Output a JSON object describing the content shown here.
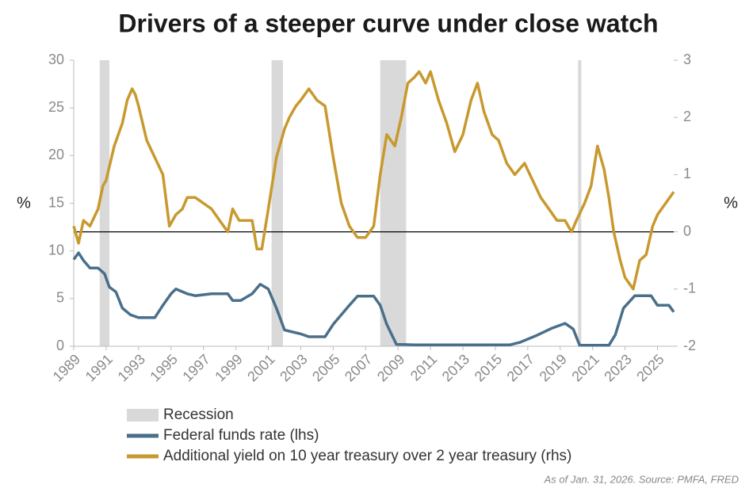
{
  "chart_data": {
    "type": "line",
    "title": "Drivers of a steeper curve under close watch",
    "ylabel": "%",
    "y2label": "%",
    "xlim": [
      1989,
      2026
    ],
    "xticks": [
      1989,
      1991,
      1993,
      1995,
      1997,
      1999,
      2001,
      2003,
      2005,
      2007,
      2009,
      2011,
      2013,
      2015,
      2017,
      2019,
      2021,
      2023,
      2025
    ],
    "ylim": [
      0,
      30
    ],
    "yticks": [
      0,
      5,
      10,
      15,
      20,
      25,
      30
    ],
    "y2lim": [
      -2,
      3
    ],
    "y2ticks": [
      -2,
      -1,
      0,
      1,
      2,
      3
    ],
    "bands": {
      "name": "Recession",
      "color": "#d9d9d9",
      "ranges": [
        [
          1990.6,
          1991.2
        ],
        [
          2001.2,
          2001.9
        ],
        [
          2007.9,
          2009.5
        ],
        [
          2020.1,
          2020.3
        ]
      ]
    },
    "series": [
      {
        "name": "Federal funds rate (lhs)",
        "color": "#4a6f8a",
        "x": [
          1989.0,
          1989.3,
          1989.6,
          1990.0,
          1990.5,
          1990.9,
          1991.2,
          1991.6,
          1992.0,
          1992.5,
          1993.0,
          1994.0,
          1994.5,
          1995.0,
          1995.3,
          1996.0,
          1996.5,
          1997.5,
          1998.5,
          1998.8,
          1999.3,
          2000.0,
          2000.5,
          2001.0,
          2001.5,
          2002.0,
          2003.0,
          2003.5,
          2004.5,
          2005.0,
          2006.0,
          2006.5,
          2007.5,
          2007.9,
          2008.3,
          2008.9,
          2010.0,
          2015.9,
          2016.5,
          2017.5,
          2018.5,
          2019.3,
          2019.8,
          2020.2,
          2022.0,
          2022.4,
          2022.9,
          2023.6,
          2024.6,
          2025.0,
          2025.7,
          2026.0
        ],
        "values": [
          9.1,
          9.8,
          9.0,
          8.2,
          8.2,
          7.6,
          6.2,
          5.7,
          4.0,
          3.3,
          3.0,
          3.0,
          4.3,
          5.5,
          6.0,
          5.5,
          5.3,
          5.5,
          5.5,
          4.8,
          4.8,
          5.5,
          6.5,
          6.0,
          4.0,
          1.7,
          1.3,
          1.0,
          1.0,
          2.3,
          4.3,
          5.25,
          5.25,
          4.3,
          2.3,
          0.2,
          0.15,
          0.15,
          0.4,
          1.1,
          1.9,
          2.4,
          1.8,
          0.1,
          0.1,
          1.2,
          4.0,
          5.3,
          5.3,
          4.3,
          4.3,
          3.6
        ]
      },
      {
        "name": "Additional yield on 10 year treasury over 2 year treasury (rhs)",
        "color": "#c8992e",
        "axis": "y2",
        "x": [
          1989.0,
          1989.3,
          1989.6,
          1990.0,
          1990.5,
          1990.8,
          1991.0,
          1991.5,
          1992.0,
          1992.3,
          1992.6,
          1992.8,
          1993.0,
          1993.5,
          1994.0,
          1994.5,
          1994.9,
          1995.3,
          1995.7,
          1996.0,
          1996.5,
          1997.0,
          1997.5,
          1998.0,
          1998.5,
          1998.8,
          1999.2,
          1999.6,
          2000.0,
          2000.3,
          2000.6,
          2001.0,
          2001.5,
          2002.0,
          2002.3,
          2002.7,
          2003.0,
          2003.5,
          2004.0,
          2004.5,
          2005.0,
          2005.5,
          2006.0,
          2006.5,
          2007.0,
          2007.5,
          2007.9,
          2008.3,
          2008.8,
          2009.2,
          2009.6,
          2010.0,
          2010.3,
          2010.7,
          2011.0,
          2011.5,
          2012.0,
          2012.5,
          2013.0,
          2013.5,
          2013.9,
          2014.3,
          2014.8,
          2015.2,
          2015.7,
          2016.2,
          2016.8,
          2017.3,
          2017.8,
          2018.3,
          2018.8,
          2019.3,
          2019.7,
          2020.0,
          2020.5,
          2020.9,
          2021.3,
          2021.7,
          2022.0,
          2022.3,
          2022.7,
          2023.0,
          2023.5,
          2023.9,
          2024.3,
          2024.7,
          2025.0,
          2025.5,
          2026.0
        ],
        "values": [
          0.1,
          -0.2,
          0.2,
          0.1,
          0.4,
          0.8,
          0.9,
          1.5,
          1.9,
          2.3,
          2.5,
          2.4,
          2.2,
          1.6,
          1.3,
          1.0,
          0.1,
          0.3,
          0.4,
          0.6,
          0.6,
          0.5,
          0.4,
          0.2,
          0.0,
          0.4,
          0.2,
          0.2,
          0.2,
          -0.3,
          -0.3,
          0.4,
          1.3,
          1.8,
          2.0,
          2.2,
          2.3,
          2.5,
          2.3,
          2.2,
          1.3,
          0.5,
          0.1,
          -0.1,
          -0.1,
          0.1,
          1.0,
          1.7,
          1.5,
          2.0,
          2.6,
          2.7,
          2.8,
          2.6,
          2.8,
          2.3,
          1.9,
          1.4,
          1.7,
          2.3,
          2.6,
          2.1,
          1.7,
          1.6,
          1.2,
          1.0,
          1.2,
          0.9,
          0.6,
          0.4,
          0.2,
          0.2,
          0.0,
          0.2,
          0.5,
          0.8,
          1.5,
          1.1,
          0.6,
          0.0,
          -0.5,
          -0.8,
          -1.0,
          -0.5,
          -0.4,
          0.1,
          0.3,
          0.5,
          0.7
        ]
      }
    ],
    "zero_line": 0,
    "note": "As of Jan. 31, 2026. Source: PMFA, FRED"
  }
}
